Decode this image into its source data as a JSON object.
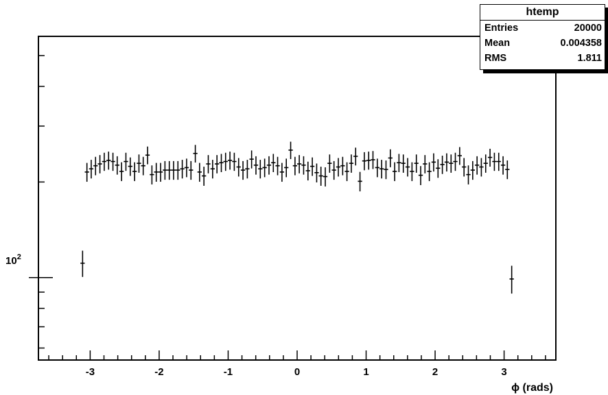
{
  "chart_data": {
    "type": "scatter",
    "title": "",
    "xlabel": "ϕ (rads)",
    "ylabel": "",
    "xlim": [
      -3.75,
      3.75
    ],
    "ylim": [
      55,
      575
    ],
    "log_y": true,
    "grid": false,
    "x_tick_labels": [
      "-3",
      "-2",
      "-1",
      "0",
      "1",
      "2",
      "3"
    ],
    "x_tick_values": [
      -3,
      -2,
      -1,
      0,
      1,
      2,
      3
    ],
    "y_tick_label": {
      "base": "10",
      "exp": "2",
      "value": 100
    },
    "bin_width": 0.0628,
    "series": [
      {
        "x": [
          -3.11,
          -3.047,
          -2.985,
          -2.922,
          -2.859,
          -2.796,
          -2.733,
          -2.67,
          -2.608,
          -2.545,
          -2.482,
          -2.419,
          -2.356,
          -2.293,
          -2.231,
          -2.168,
          -2.105,
          -2.042,
          -1.979,
          -1.916,
          -1.853,
          -1.791,
          -1.728,
          -1.665,
          -1.602,
          -1.539,
          -1.476,
          -1.414,
          -1.351,
          -1.288,
          -1.225,
          -1.162,
          -1.099,
          -1.037,
          -0.974,
          -0.911,
          -0.848,
          -0.785,
          -0.722,
          -0.66,
          -0.597,
          -0.534,
          -0.471,
          -0.408,
          -0.345,
          -0.283,
          -0.22,
          -0.157,
          -0.094,
          -0.031,
          0.031,
          0.094,
          0.157,
          0.22,
          0.283,
          0.345,
          0.408,
          0.471,
          0.534,
          0.597,
          0.66,
          0.722,
          0.785,
          0.848,
          0.911,
          0.974,
          1.037,
          1.099,
          1.162,
          1.225,
          1.288,
          1.351,
          1.414,
          1.476,
          1.539,
          1.602,
          1.665,
          1.728,
          1.791,
          1.853,
          1.916,
          1.979,
          2.042,
          2.105,
          2.168,
          2.231,
          2.293,
          2.356,
          2.419,
          2.482,
          2.545,
          2.608,
          2.67,
          2.733,
          2.796,
          2.859,
          2.922,
          2.985,
          3.047,
          3.11
        ],
        "y": [
          111,
          215,
          220,
          225,
          228,
          232,
          234,
          232,
          226,
          216,
          232,
          224,
          216,
          229,
          225,
          243,
          211,
          215,
          215,
          218,
          218,
          218,
          218,
          220,
          222,
          218,
          246,
          215,
          209,
          228,
          220,
          228,
          230,
          232,
          234,
          232,
          223,
          218,
          220,
          236,
          226,
          220,
          222,
          226,
          230,
          225,
          215,
          222,
          252,
          225,
          228,
          226,
          217,
          224,
          214,
          209,
          208,
          229,
          218,
          223,
          225,
          216,
          229,
          241,
          201,
          233,
          234,
          235,
          222,
          220,
          219,
          238,
          216,
          230,
          229,
          223,
          216,
          229,
          210,
          228,
          216,
          231,
          221,
          227,
          231,
          229,
          232,
          242,
          223,
          211,
          218,
          226,
          223,
          229,
          239,
          232,
          232,
          226,
          219,
          99
        ]
      }
    ]
  },
  "stats": {
    "title": "htemp",
    "rows": [
      {
        "label": "Entries",
        "value": "20000"
      },
      {
        "label": "Mean",
        "value": "0.004358"
      },
      {
        "label": "RMS",
        "value": "1.811"
      }
    ]
  }
}
